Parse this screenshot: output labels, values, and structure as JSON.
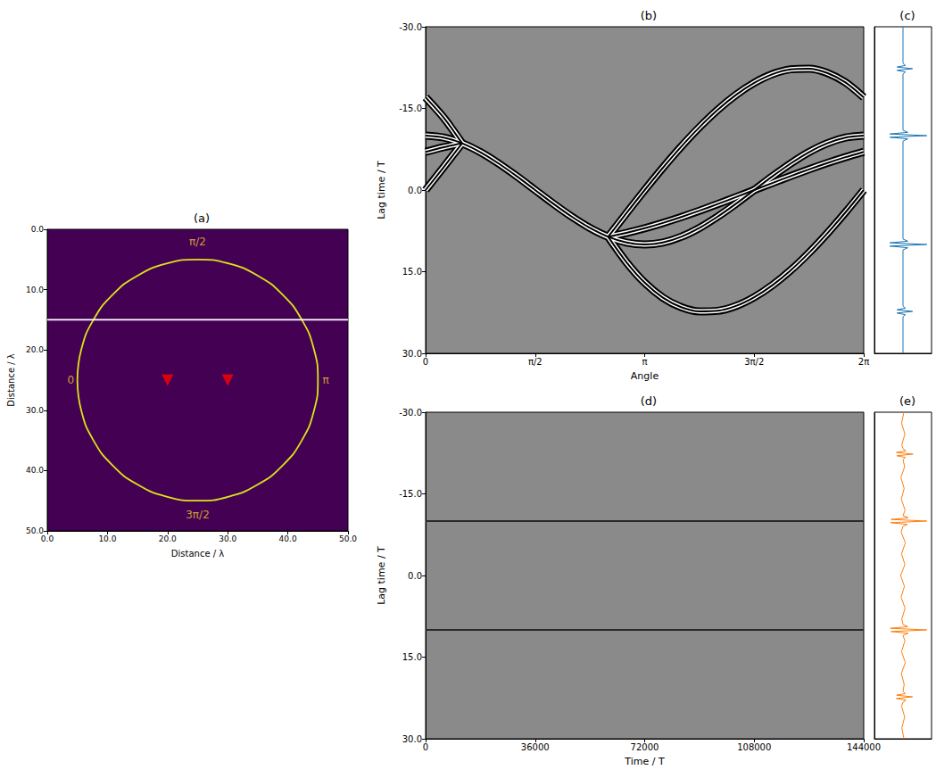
{
  "chart_data": [
    {
      "type": "scatter",
      "title": "(a)",
      "x_label": "Distance / λ",
      "y_label": "Distance / λ",
      "grid": false,
      "xlim": [
        0,
        50
      ],
      "ylim": [
        50,
        0
      ],
      "xticks": [
        {
          "value": 0,
          "label": "0.0"
        },
        {
          "value": 10,
          "label": "10.0"
        },
        {
          "value": 20,
          "label": "20.0"
        },
        {
          "value": 30,
          "label": "30.0"
        },
        {
          "value": 40,
          "label": "40.0"
        },
        {
          "value": 50,
          "label": "50.0"
        }
      ],
      "yticks": [
        {
          "value": 0,
          "label": "0.0"
        },
        {
          "value": 10,
          "label": "10.0"
        },
        {
          "value": 20,
          "label": "20.0"
        },
        {
          "value": 30,
          "label": "30.0"
        },
        {
          "value": 40,
          "label": "40.0"
        },
        {
          "value": 50,
          "label": "50.0"
        }
      ],
      "series": [
        {
          "type": "line",
          "color": "#dde318",
          "x": [
            5,
            5.68,
            7.68,
            10.86,
            15,
            19.82,
            25,
            30.18,
            35,
            39.14,
            42.32,
            44.32,
            45,
            44.32,
            42.32,
            39.14,
            35,
            30.18,
            25,
            19.82,
            15,
            10.86,
            7.68,
            5.68,
            5
          ],
          "values": [
            25,
            19.82,
            15,
            10.86,
            7.68,
            5.68,
            5,
            5.68,
            7.68,
            10.86,
            15,
            19.82,
            25,
            30.18,
            35,
            39.14,
            42.32,
            44.32,
            45,
            44.32,
            42.32,
            39.14,
            35,
            30.18,
            25
          ]
        },
        {
          "type": "line",
          "color": "#ffffff",
          "x": [
            0,
            50
          ],
          "values": [
            15,
            15
          ]
        },
        {
          "type": "scatter",
          "marker": "triangle_down",
          "color": "#ff0000",
          "x": [
            20,
            30
          ],
          "values": [
            25,
            25
          ]
        }
      ],
      "annotations": [
        {
          "text": "π/2",
          "x": 25,
          "y": 2
        },
        {
          "text": "0",
          "x": 3.9,
          "y": 25
        },
        {
          "text": "π",
          "x": 46.3,
          "y": 25
        },
        {
          "text": "3π/2",
          "x": 25,
          "y": 47.3
        }
      ]
    },
    {
      "type": "line",
      "title": "(b)",
      "x_label": "Angle",
      "y_label": "Lag time / T",
      "grid": false,
      "xlim": [
        0,
        6.2832
      ],
      "ylim": [
        30,
        -30
      ],
      "xticks": [
        0,
        {
          "value": 1.5708,
          "label": "π/2"
        },
        {
          "value": 3.1416,
          "label": "π"
        },
        {
          "value": 4.7124,
          "label": "3π/2"
        },
        {
          "value": 6.2832,
          "label": "2π"
        }
      ],
      "yticks": [
        {
          "value": -30,
          "label": "-30.0"
        },
        {
          "value": -15,
          "label": "-15.0"
        },
        {
          "value": 0,
          "label": "0.0"
        },
        {
          "value": 15,
          "label": "15.0"
        },
        {
          "value": 30,
          "label": "30.0"
        }
      ],
      "series": [
        {
          "color": "#000000",
          "x": [
            0,
            0.2618,
            0.5236,
            0.7854,
            1.0472,
            1.309,
            1.5708,
            1.8326,
            2.0944,
            2.3562,
            2.618,
            2.8798,
            3.1416,
            3.4034,
            3.6652,
            3.927,
            4.1888,
            4.4506,
            4.7124,
            4.9742,
            5.236,
            5.4978,
            5.7596,
            6.0214,
            6.2832
          ],
          "values": [
            -10,
            -9.64,
            -8.59,
            -6.96,
            -4.88,
            -2.52,
            0,
            2.52,
            4.88,
            6.96,
            8.59,
            9.64,
            10,
            9.64,
            8.59,
            6.96,
            4.88,
            2.52,
            0,
            -2.52,
            -4.88,
            -6.96,
            -8.59,
            -9.64,
            -10
          ]
        },
        {
          "color": "#000000",
          "x": [
            2.618,
            2.8798,
            3.1416,
            3.4034,
            3.6652,
            3.927,
            4.1888,
            4.4506,
            4.7124,
            4.9742,
            5.236,
            5.4978,
            5.7596,
            6.0214,
            6.2832
          ],
          "values": [
            8.59,
            4.26,
            0,
            -4.1,
            -7.97,
            -11.54,
            -14.74,
            -17.48,
            -19.69,
            -21.3,
            -22.19,
            -22.3,
            -21.52,
            -19.78,
            -17.02
          ]
        },
        {
          "color": "#000000",
          "x": [
            0,
            0.2618,
            0.5236
          ],
          "values": [
            -17.02,
            -13.25,
            -8.59
          ]
        },
        {
          "color": "#000000",
          "x": [
            2.618,
            2.8798,
            3.1416,
            3.4034,
            3.6652,
            3.927,
            4.1888,
            4.4506,
            4.7124,
            4.9742,
            5.236,
            5.4978,
            5.7596,
            6.0214,
            6.2832
          ],
          "values": [
            8.59,
            13.25,
            17.02,
            19.78,
            21.52,
            22.3,
            22.19,
            21.3,
            19.69,
            17.48,
            14.74,
            11.54,
            7.97,
            4.1,
            0
          ]
        },
        {
          "color": "#000000",
          "x": [
            0,
            0.2618,
            0.5236
          ],
          "values": [
            0,
            -4.26,
            -8.59
          ]
        },
        {
          "color": "#000000",
          "x": [
            2.618,
            2.8798,
            3.1416,
            3.4034,
            3.6652,
            3.927,
            4.1888,
            4.4506,
            4.7124,
            4.9742,
            5.236,
            5.4978,
            5.7596,
            6.0214,
            6.2832
          ],
          "values": [
            8.59,
            7.87,
            7.02,
            6.04,
            4.96,
            3.8,
            2.57,
            1.3,
            0,
            -1.3,
            -2.57,
            -3.8,
            -4.96,
            -6.04,
            -7.02
          ]
        },
        {
          "color": "#000000",
          "x": [
            0,
            0.2618,
            0.5236
          ],
          "values": [
            -7.02,
            -7.87,
            -8.59
          ]
        }
      ]
    },
    {
      "type": "line",
      "title": "(c)",
      "tick_labels": false,
      "grid": false,
      "xlim": [
        -1.2,
        1.2
      ],
      "ylim": [
        30,
        -30
      ],
      "series": [
        {
          "color": "#1f77b4",
          "lag": [
            -30,
            -23.3,
            -22.9,
            -22.6,
            -22.3,
            -22.0,
            -21.7,
            -21.3,
            -11.0,
            -10.6,
            -10.3,
            -10.0,
            -9.7,
            -9.4,
            -9.0,
            9.0,
            9.4,
            9.7,
            10.0,
            10.3,
            10.6,
            11.0,
            21.3,
            21.7,
            22.0,
            22.3,
            22.6,
            22.9,
            23.3,
            30
          ],
          "values": [
            0,
            0,
            0.1,
            -0.25,
            0.4,
            -0.25,
            0.1,
            0,
            0,
            0.2,
            -0.55,
            1,
            -0.55,
            0.2,
            0,
            0,
            0.2,
            -0.55,
            1,
            -0.55,
            0.2,
            0,
            0,
            0.1,
            -0.25,
            0.4,
            -0.25,
            0.1,
            0,
            0
          ]
        }
      ]
    },
    {
      "type": "line",
      "title": "(d)",
      "x_label": "Time / T",
      "y_label": "Lag time / T",
      "grid": false,
      "xlim": [
        0,
        144000
      ],
      "ylim": [
        30,
        -30
      ],
      "xticks": [
        0,
        36000,
        72000,
        108000,
        144000
      ],
      "yticks": [
        {
          "value": -30,
          "label": "-30.0"
        },
        {
          "value": -15,
          "label": "-15.0"
        },
        {
          "value": 0,
          "label": "0.0"
        },
        {
          "value": 15,
          "label": "15.0"
        },
        {
          "value": 30,
          "label": "30.0"
        }
      ],
      "series": [
        {
          "color": "#2a2a2a",
          "x": [
            0,
            144000
          ],
          "values": [
            -10,
            -10
          ]
        },
        {
          "color": "#2a2a2a",
          "x": [
            0,
            144000
          ],
          "values": [
            10,
            10
          ]
        }
      ]
    },
    {
      "type": "line",
      "title": "(e)",
      "tick_labels": false,
      "grid": false,
      "xlim": [
        -1.2,
        1.2
      ],
      "ylim": [
        30,
        -30
      ],
      "series": [
        {
          "color": "#ff7f0e",
          "lag": [
            -30,
            -28,
            -26,
            -24,
            -23.3,
            -22.9,
            -22.6,
            -22.3,
            -22.0,
            -21.7,
            -21.3,
            -20,
            -18,
            -16,
            -14,
            -12,
            -11.0,
            -10.6,
            -10.3,
            -10.0,
            -9.7,
            -9.4,
            -9.0,
            -8,
            -6,
            -4,
            -2,
            0,
            2,
            4,
            6,
            8,
            9.0,
            9.4,
            9.7,
            10.0,
            10.3,
            10.6,
            11.0,
            12,
            14,
            16,
            18,
            20,
            21.3,
            21.7,
            22.0,
            22.3,
            22.6,
            22.9,
            23.3,
            24,
            26,
            28,
            30
          ],
          "values": [
            0.04,
            -0.06,
            0.08,
            -0.05,
            0,
            0.12,
            -0.28,
            0.42,
            -0.26,
            0.1,
            0,
            0.07,
            -0.09,
            0.05,
            -0.07,
            0.09,
            0,
            0.22,
            -0.5,
            1,
            -0.52,
            0.18,
            0,
            -0.08,
            0.1,
            -0.06,
            0.08,
            -0.1,
            0.06,
            -0.08,
            0.09,
            -0.05,
            0,
            0.2,
            -0.53,
            1,
            -0.5,
            0.22,
            0,
            0.08,
            -0.06,
            0.1,
            -0.07,
            0.05,
            0,
            0.1,
            -0.27,
            0.4,
            -0.28,
            0.12,
            0,
            -0.06,
            0.07,
            -0.05,
            0.04
          ]
        }
      ]
    }
  ]
}
